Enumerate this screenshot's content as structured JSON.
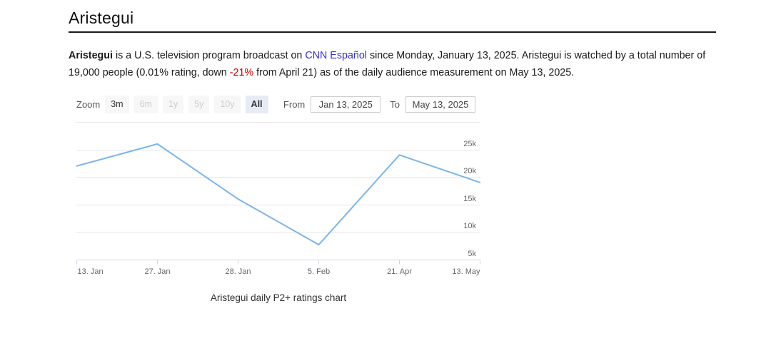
{
  "header": {
    "title": "Aristegui"
  },
  "description": {
    "show_name": "Aristegui",
    "text_1": " is a U.S. television program broadcast on ",
    "network_link": "CNN Español",
    "text_2": " since Monday, January 13, 2025. Aristegui is watched by a total number of",
    "text_3": "19,000 people (0.01% rating, down ",
    "change": "-21%",
    "text_4": " from April 21) as of the daily audience measurement on May 13, 2025."
  },
  "range_selector": {
    "zoom_label": "Zoom",
    "buttons": [
      {
        "label": "3m",
        "state": "enabled"
      },
      {
        "label": "6m",
        "state": "disabled"
      },
      {
        "label": "1y",
        "state": "disabled"
      },
      {
        "label": "5y",
        "state": "disabled"
      },
      {
        "label": "10y",
        "state": "disabled"
      },
      {
        "label": "All",
        "state": "selected"
      }
    ],
    "from_label": "From",
    "from_value": "Jan 13, 2025",
    "to_label": "To",
    "to_value": "May 13, 2025"
  },
  "chart_data": {
    "type": "line",
    "title": "",
    "caption": "Aristegui daily P2+ ratings chart",
    "categories": [
      "13. Jan",
      "27. Jan",
      "28. Jan",
      "5. Feb",
      "21. Apr",
      "13. May"
    ],
    "values": [
      22000,
      26000,
      16000,
      7700,
      24000,
      19000
    ],
    "xlabel": "",
    "ylabel": "",
    "ylim": [
      5000,
      30000
    ],
    "ytick_interval": 5000,
    "yticks": [
      {
        "value": 25000,
        "label": "25k"
      },
      {
        "value": 20000,
        "label": "20k"
      },
      {
        "value": 15000,
        "label": "15k"
      },
      {
        "value": 10000,
        "label": "10k"
      },
      {
        "value": 5000,
        "label": "5k"
      }
    ],
    "grid": true,
    "legend": "none",
    "line_color": "#7cb5ec"
  },
  "colors": {
    "line": "#7cb5ec",
    "grid": "#e6e6e6",
    "axis": "#ccd6eb",
    "axis_label_text": "#666666",
    "link": "#3333cc",
    "negative": "#cc0000",
    "button_bg": "#f7f7f7",
    "button_selected_bg": "#e6ebf5",
    "button_disabled_text": "#cccccc"
  }
}
